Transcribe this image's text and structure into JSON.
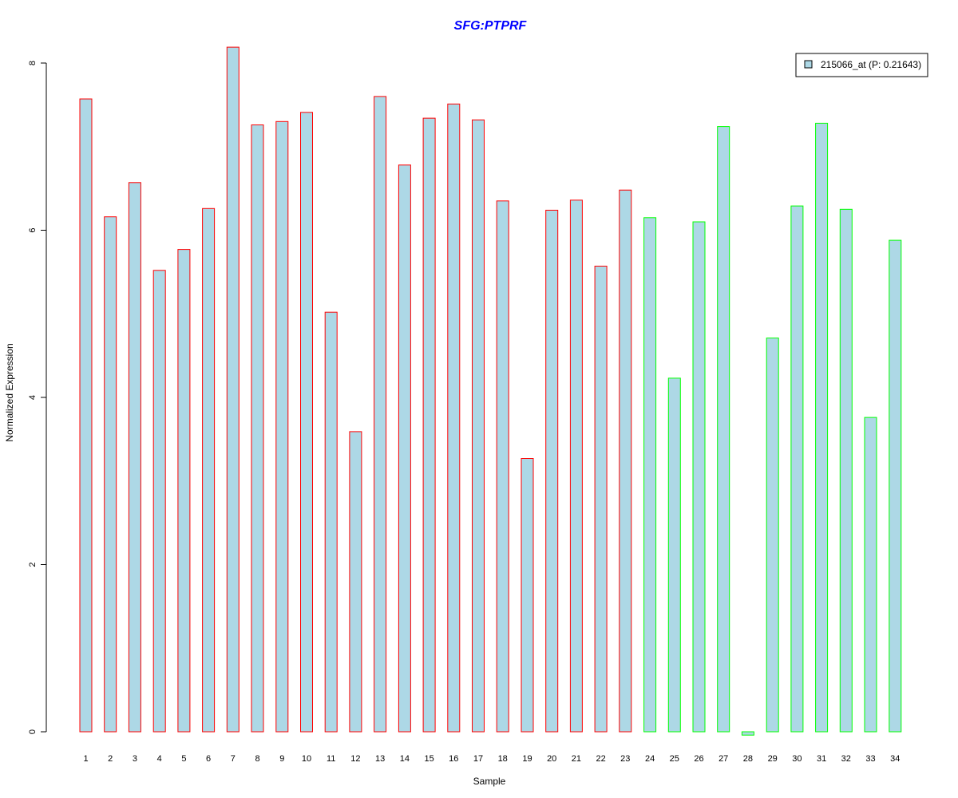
{
  "chart_data": {
    "type": "bar",
    "title": "SFG:PTPRF",
    "xlabel": "Sample",
    "ylabel": "Normalized Expression",
    "ylim": [
      0,
      8.2
    ],
    "yticks": [
      "0",
      "2",
      "4",
      "6",
      "8"
    ],
    "categories": [
      "1",
      "2",
      "3",
      "4",
      "5",
      "6",
      "7",
      "8",
      "9",
      "10",
      "11",
      "12",
      "13",
      "14",
      "15",
      "16",
      "17",
      "18",
      "19",
      "20",
      "21",
      "22",
      "23",
      "24",
      "25",
      "26",
      "27",
      "28",
      "29",
      "30",
      "31",
      "32",
      "33",
      "34"
    ],
    "series": [
      {
        "name": "215066_at (P: 0.21643)",
        "values": [
          7.57,
          6.16,
          6.57,
          5.52,
          5.77,
          6.26,
          8.19,
          7.26,
          7.3,
          7.41,
          5.02,
          3.59,
          7.6,
          6.78,
          7.34,
          7.51,
          7.32,
          6.35,
          3.27,
          6.24,
          6.36,
          5.57,
          6.48,
          6.15,
          4.23,
          6.1,
          7.24,
          -0.04,
          4.71,
          6.29,
          7.28,
          6.25,
          3.76,
          5.88
        ]
      }
    ],
    "groups": [
      {
        "samples": "1-23",
        "border_color": "#ff0000"
      },
      {
        "samples": "24-34",
        "border_color": "#00ff00"
      }
    ],
    "bar_fill": "#add8e6",
    "title_color": "#0000ff",
    "grid": false,
    "legend_position": "top-right"
  }
}
